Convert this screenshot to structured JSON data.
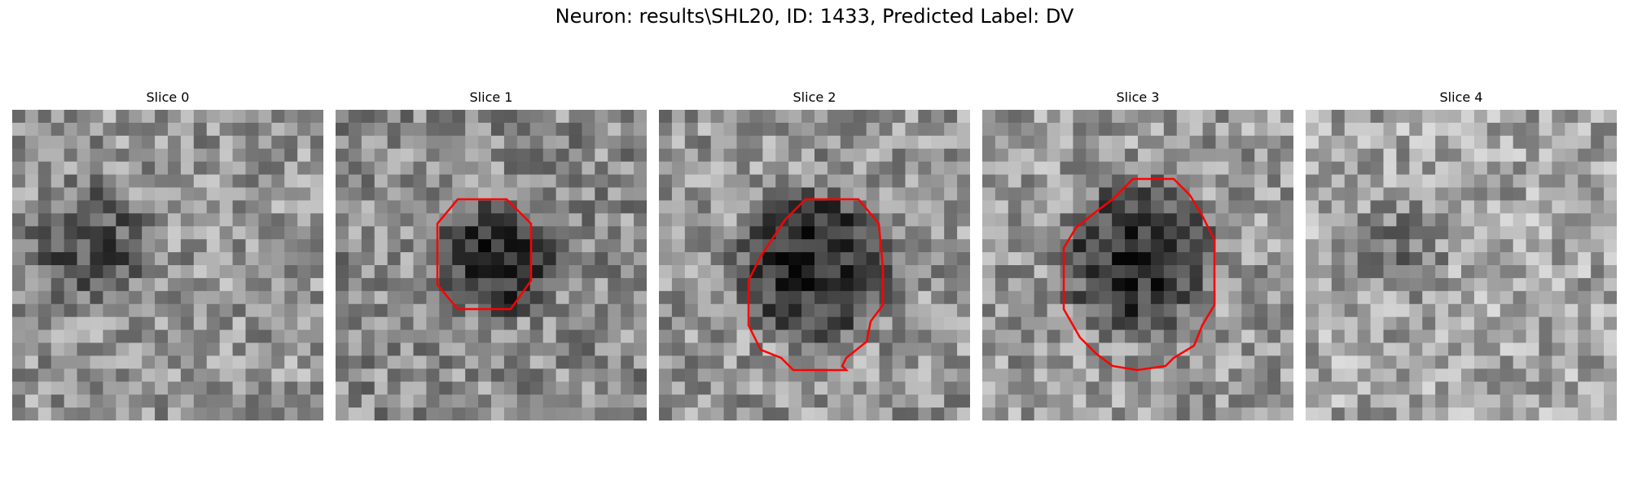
{
  "figure": {
    "title": "Neuron: results\\SHL20, ID: 1433, Predicted Label: DV"
  },
  "panels": [
    {
      "title": "Slice 0",
      "has_contour": false,
      "base_tone": 150,
      "dark_spot": [
        0.25,
        0.45,
        0.25,
        70
      ]
    },
    {
      "title": "Slice 1",
      "has_contour": true,
      "base_tone": 140,
      "dark_spot": [
        0.52,
        0.48,
        0.22,
        110
      ]
    },
    {
      "title": "Slice 2",
      "has_contour": true,
      "base_tone": 150,
      "dark_spot": [
        0.5,
        0.5,
        0.3,
        120
      ]
    },
    {
      "title": "Slice 3",
      "has_contour": true,
      "base_tone": 155,
      "dark_spot": [
        0.5,
        0.48,
        0.3,
        120
      ]
    },
    {
      "title": "Slice 4",
      "has_contour": false,
      "base_tone": 165,
      "dark_spot": [
        0.3,
        0.45,
        0.18,
        50
      ]
    }
  ],
  "style": {
    "contour_color": "#ff0000",
    "colormap": "gray"
  }
}
